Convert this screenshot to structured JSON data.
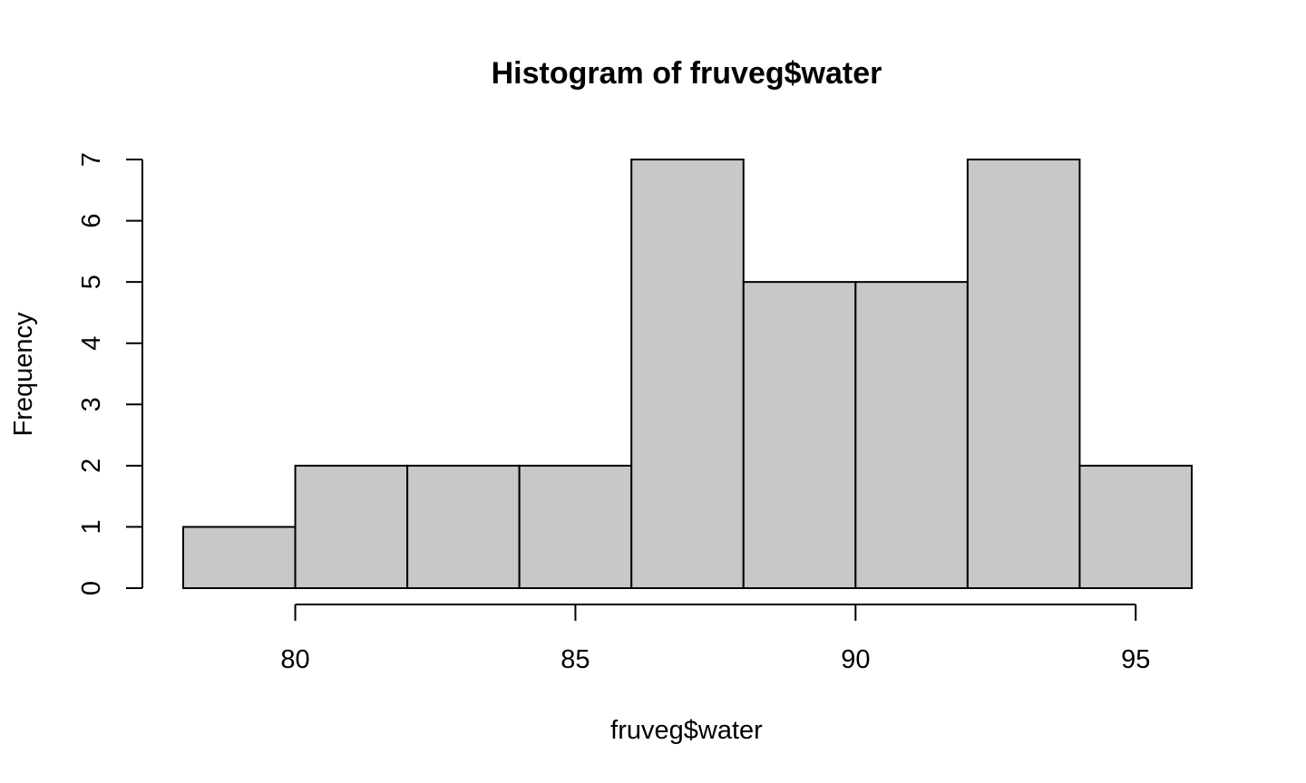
{
  "chart_data": {
    "type": "bar",
    "subtype": "histogram",
    "title": "Histogram of fruveg$water",
    "xlabel": "fruveg$water",
    "ylabel": "Frequency",
    "bins": [
      {
        "start": 78,
        "end": 80,
        "count": 1
      },
      {
        "start": 80,
        "end": 82,
        "count": 2
      },
      {
        "start": 82,
        "end": 84,
        "count": 2
      },
      {
        "start": 84,
        "end": 86,
        "count": 2
      },
      {
        "start": 86,
        "end": 88,
        "count": 7
      },
      {
        "start": 88,
        "end": 90,
        "count": 5
      },
      {
        "start": 90,
        "end": 92,
        "count": 5
      },
      {
        "start": 92,
        "end": 94,
        "count": 7
      },
      {
        "start": 94,
        "end": 96,
        "count": 2
      }
    ],
    "xlim": [
      78,
      96
    ],
    "ylim": [
      0,
      7
    ],
    "x_ticks": [
      80,
      85,
      90,
      95
    ],
    "y_ticks": [
      0,
      1,
      2,
      3,
      4,
      5,
      6,
      7
    ],
    "bar_color": "#c8c8c8",
    "border_color": "#000000",
    "grid": false,
    "legend": "none"
  }
}
